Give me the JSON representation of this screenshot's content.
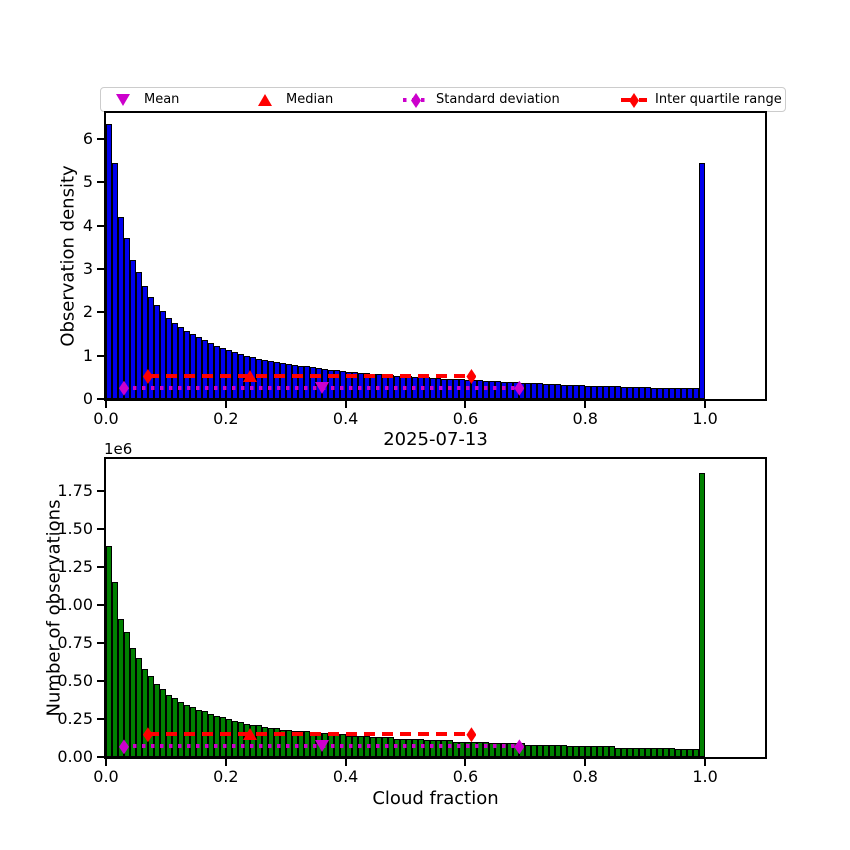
{
  "figure": {
    "title": "2025-07-13",
    "background": "#ffffff"
  },
  "legend": {
    "items": [
      {
        "label": "Mean",
        "marker": "triangle-down",
        "color": "#cc00cc",
        "linestyle": "none"
      },
      {
        "label": "Median",
        "marker": "triangle-up",
        "color": "#ff0000",
        "linestyle": "none"
      },
      {
        "label": "Standard deviation",
        "marker": "diamond",
        "color": "#cc00cc",
        "linestyle": "dotted"
      },
      {
        "label": "Inter quartile range",
        "marker": "diamond",
        "color": "#ff0000",
        "linestyle": "dashed"
      }
    ]
  },
  "chart_data": [
    {
      "type": "bar",
      "name": "observation-density-histogram",
      "ylabel": "Observation density",
      "xlabel": "",
      "bar_color": "#0000ee",
      "bar_edge_color": "#000000",
      "bin_start": 0,
      "bin_width": 0.01,
      "xlim": [
        0,
        1.1
      ],
      "ylim": [
        0,
        6.6
      ],
      "xtick_values": [
        0.0,
        0.2,
        0.4,
        0.6,
        0.8,
        1.0
      ],
      "xtick_labels": [
        "0.0",
        "0.2",
        "0.4",
        "0.6",
        "0.8",
        "1.0"
      ],
      "ytick_values": [
        0,
        1,
        2,
        3,
        4,
        5,
        6
      ],
      "ytick_labels": [
        "0",
        "1",
        "2",
        "3",
        "4",
        "5",
        "6"
      ],
      "grid": false,
      "values": [
        6.35,
        5.45,
        4.2,
        3.72,
        3.2,
        2.92,
        2.6,
        2.36,
        2.18,
        2.02,
        1.88,
        1.76,
        1.66,
        1.57,
        1.49,
        1.42,
        1.35,
        1.29,
        1.23,
        1.18,
        1.13,
        1.08,
        1.04,
        1.0,
        0.97,
        0.93,
        0.9,
        0.88,
        0.85,
        0.83,
        0.81,
        0.79,
        0.77,
        0.75,
        0.73,
        0.71,
        0.69,
        0.68,
        0.66,
        0.65,
        0.63,
        0.62,
        0.61,
        0.6,
        0.58,
        0.57,
        0.56,
        0.55,
        0.54,
        0.53,
        0.52,
        0.51,
        0.5,
        0.5,
        0.49,
        0.48,
        0.47,
        0.46,
        0.46,
        0.45,
        0.44,
        0.43,
        0.43,
        0.42,
        0.41,
        0.41,
        0.4,
        0.39,
        0.39,
        0.38,
        0.37,
        0.37,
        0.36,
        0.35,
        0.35,
        0.34,
        0.33,
        0.33,
        0.32,
        0.32,
        0.31,
        0.31,
        0.3,
        0.3,
        0.29,
        0.29,
        0.28,
        0.28,
        0.27,
        0.27,
        0.27,
        0.26,
        0.26,
        0.26,
        0.25,
        0.25,
        0.25,
        0.25,
        0.25,
        5.45
      ],
      "markers": {
        "mean": {
          "x": 0.36,
          "y": 0.26,
          "color": "#cc00cc",
          "shape": "triangle-down"
        },
        "median": {
          "x": 0.24,
          "y": 0.53,
          "color": "#ff0000",
          "shape": "triangle-up"
        },
        "std_range": {
          "x1": 0.03,
          "x2": 0.69,
          "y": 0.26,
          "color": "#cc00cc",
          "style": "dotted"
        },
        "iqr_range": {
          "x1": 0.07,
          "x2": 0.61,
          "y": 0.53,
          "color": "#ff0000",
          "style": "dashed"
        }
      }
    },
    {
      "type": "bar",
      "name": "observation-count-histogram",
      "ylabel": "Number of observations",
      "xlabel": "Cloud fraction",
      "offset_label": "1e6",
      "unit_multiplier": 1000000,
      "bar_color": "#008000",
      "bar_edge_color": "#000000",
      "bin_start": 0,
      "bin_width": 0.01,
      "xlim": [
        0,
        1.1
      ],
      "ylim": [
        0,
        1.96
      ],
      "xtick_values": [
        0.0,
        0.2,
        0.4,
        0.6,
        0.8,
        1.0
      ],
      "xtick_labels": [
        "0.0",
        "0.2",
        "0.4",
        "0.6",
        "0.8",
        "1.0"
      ],
      "ytick_values": [
        0,
        0.25,
        0.5,
        0.75,
        1.0,
        1.25,
        1.5,
        1.75
      ],
      "ytick_labels": [
        "0.00",
        "0.25",
        "0.50",
        "0.75",
        "1.00",
        "1.25",
        "1.50",
        "1.75"
      ],
      "grid": false,
      "values": [
        1.39,
        1.15,
        0.91,
        0.82,
        0.72,
        0.65,
        0.58,
        0.53,
        0.48,
        0.45,
        0.41,
        0.39,
        0.36,
        0.34,
        0.33,
        0.31,
        0.3,
        0.28,
        0.27,
        0.26,
        0.25,
        0.24,
        0.23,
        0.22,
        0.21,
        0.21,
        0.2,
        0.19,
        0.19,
        0.18,
        0.18,
        0.17,
        0.17,
        0.17,
        0.16,
        0.16,
        0.16,
        0.15,
        0.15,
        0.15,
        0.14,
        0.14,
        0.14,
        0.14,
        0.13,
        0.13,
        0.13,
        0.13,
        0.12,
        0.12,
        0.12,
        0.12,
        0.12,
        0.11,
        0.11,
        0.11,
        0.11,
        0.11,
        0.1,
        0.1,
        0.1,
        0.1,
        0.1,
        0.1,
        0.09,
        0.09,
        0.09,
        0.09,
        0.09,
        0.09,
        0.08,
        0.08,
        0.08,
        0.08,
        0.08,
        0.08,
        0.08,
        0.07,
        0.07,
        0.07,
        0.07,
        0.07,
        0.07,
        0.07,
        0.07,
        0.06,
        0.06,
        0.06,
        0.06,
        0.06,
        0.06,
        0.06,
        0.06,
        0.06,
        0.06,
        0.05,
        0.05,
        0.05,
        0.05,
        1.87
      ],
      "markers": {
        "mean": {
          "x": 0.36,
          "y": 0.07,
          "color": "#cc00cc",
          "shape": "triangle-down"
        },
        "median": {
          "x": 0.24,
          "y": 0.15,
          "color": "#ff0000",
          "shape": "triangle-up"
        },
        "std_range": {
          "x1": 0.03,
          "x2": 0.69,
          "y": 0.07,
          "color": "#cc00cc",
          "style": "dotted"
        },
        "iqr_range": {
          "x1": 0.07,
          "x2": 0.61,
          "y": 0.15,
          "color": "#ff0000",
          "style": "dashed"
        }
      }
    }
  ]
}
